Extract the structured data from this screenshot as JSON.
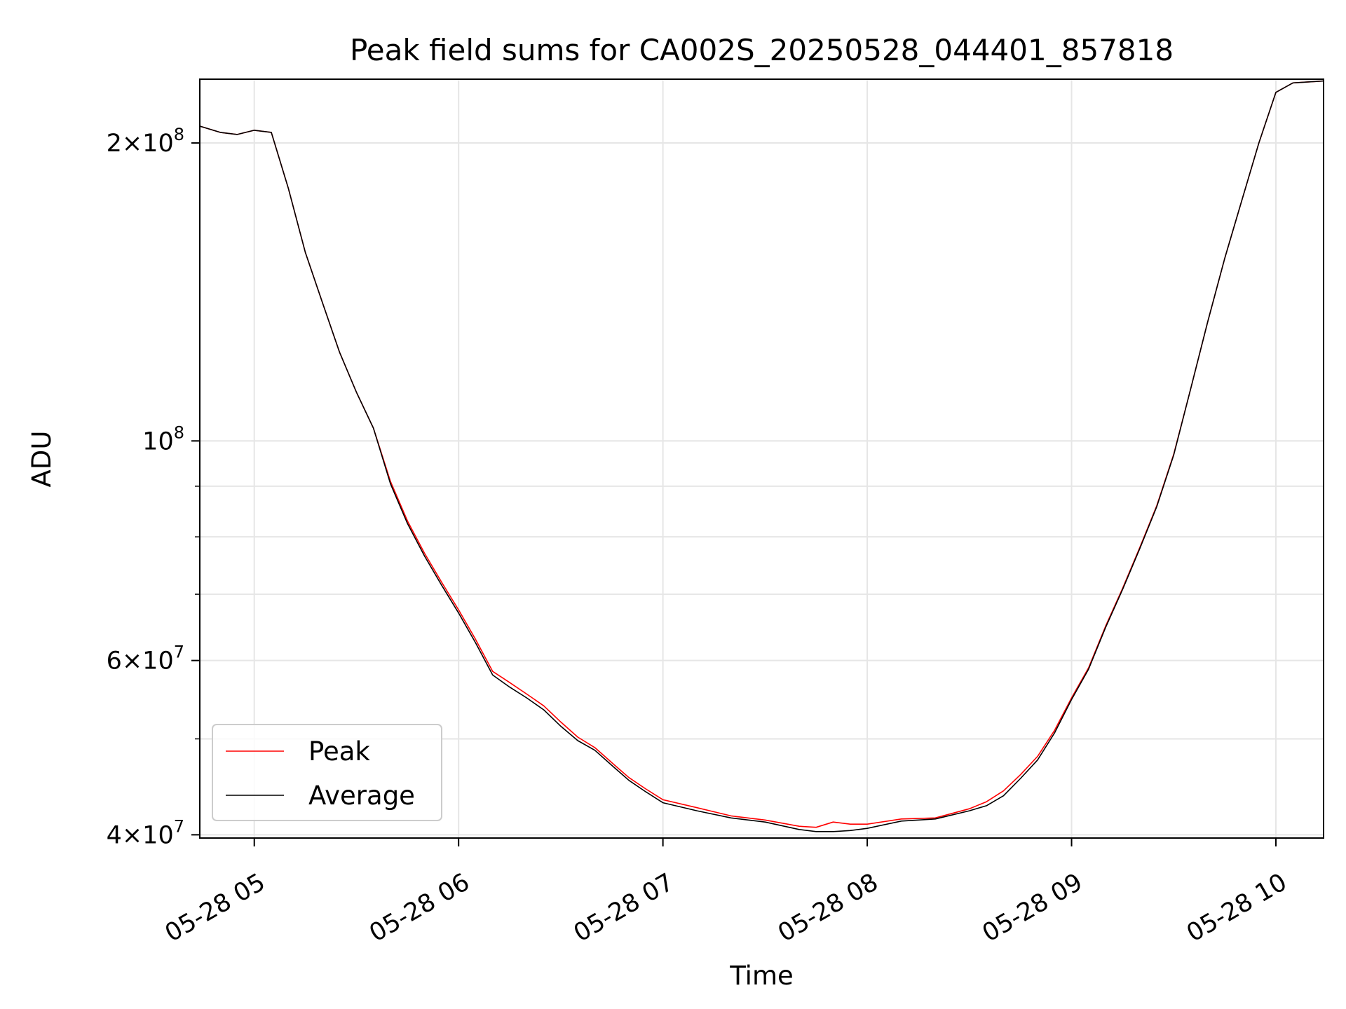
{
  "chart_data": {
    "type": "line",
    "title": "Peak field sums for CA002S_20250528_044401_857818",
    "xlabel": "Time",
    "ylabel": "ADU",
    "yscale": "log",
    "grid": true,
    "legend_position": "lower-left",
    "xlim": [
      "2025-05-28 04:44",
      "2025-05-28 10:14"
    ],
    "ylim": [
      39700000,
      232000000
    ],
    "x_ticks": [
      {
        "value": "2025-05-28 05:00",
        "label": "05-28 05"
      },
      {
        "value": "2025-05-28 06:00",
        "label": "05-28 06"
      },
      {
        "value": "2025-05-28 07:00",
        "label": "05-28 07"
      },
      {
        "value": "2025-05-28 08:00",
        "label": "05-28 08"
      },
      {
        "value": "2025-05-28 09:00",
        "label": "05-28 09"
      },
      {
        "value": "2025-05-28 10:00",
        "label": "05-28 10"
      }
    ],
    "y_major_ticks": [
      {
        "value": 40000000,
        "mantissa": "4",
        "exponent": "7"
      },
      {
        "value": 60000000,
        "mantissa": "6",
        "exponent": "7"
      },
      {
        "value": 100000000,
        "mantissa": "",
        "exponent": "8"
      },
      {
        "value": 200000000,
        "mantissa": "2",
        "exponent": "8"
      }
    ],
    "y_minor_ticks": [
      50000000,
      70000000,
      80000000,
      90000000
    ],
    "x": [
      "2025-05-28 04:44",
      "2025-05-28 04:50",
      "2025-05-28 04:55",
      "2025-05-28 05:00",
      "2025-05-28 05:05",
      "2025-05-28 05:10",
      "2025-05-28 05:15",
      "2025-05-28 05:20",
      "2025-05-28 05:25",
      "2025-05-28 05:30",
      "2025-05-28 05:35",
      "2025-05-28 05:40",
      "2025-05-28 05:45",
      "2025-05-28 05:50",
      "2025-05-28 05:55",
      "2025-05-28 06:00",
      "2025-05-28 06:05",
      "2025-05-28 06:10",
      "2025-05-28 06:15",
      "2025-05-28 06:20",
      "2025-05-28 06:25",
      "2025-05-28 06:30",
      "2025-05-28 06:35",
      "2025-05-28 06:40",
      "2025-05-28 06:45",
      "2025-05-28 06:50",
      "2025-05-28 06:55",
      "2025-05-28 07:00",
      "2025-05-28 07:10",
      "2025-05-28 07:20",
      "2025-05-28 07:30",
      "2025-05-28 07:40",
      "2025-05-28 07:45",
      "2025-05-28 07:50",
      "2025-05-28 07:55",
      "2025-05-28 08:00",
      "2025-05-28 08:10",
      "2025-05-28 08:20",
      "2025-05-28 08:30",
      "2025-05-28 08:35",
      "2025-05-28 08:40",
      "2025-05-28 08:45",
      "2025-05-28 08:50",
      "2025-05-28 08:55",
      "2025-05-28 09:00",
      "2025-05-28 09:05",
      "2025-05-28 09:10",
      "2025-05-28 09:15",
      "2025-05-28 09:20",
      "2025-05-28 09:25",
      "2025-05-28 09:30",
      "2025-05-28 09:35",
      "2025-05-28 09:40",
      "2025-05-28 09:45",
      "2025-05-28 09:50",
      "2025-05-28 09:55",
      "2025-05-28 10:00",
      "2025-05-28 10:05",
      "2025-05-28 10:14"
    ],
    "series": [
      {
        "name": "Peak",
        "color": "#ff0000",
        "values": [
          208000000,
          205000000,
          204000000,
          206000000,
          205000000,
          180000000,
          155000000,
          138000000,
          123000000,
          112000000,
          103000000,
          91000000,
          83000000,
          77000000,
          72000000,
          67500000,
          63000000,
          58500000,
          57000000,
          55500000,
          54000000,
          52000000,
          50200000,
          49000000,
          47300000,
          45700000,
          44500000,
          43400000,
          42600000,
          41800000,
          41400000,
          40800000,
          40700000,
          41200000,
          41000000,
          41000000,
          41500000,
          41600000,
          42500000,
          43200000,
          44300000,
          46000000,
          48000000,
          51000000,
          55000000,
          59000000,
          65000000,
          71000000,
          78000000,
          86000000,
          97000000,
          113000000,
          132000000,
          153000000,
          175000000,
          200000000,
          225000000,
          230000000,
          231000000
        ]
      },
      {
        "name": "Average",
        "color": "#000000",
        "values": [
          208000000,
          205000000,
          204000000,
          206000000,
          205000000,
          180000000,
          155000000,
          138000000,
          123000000,
          112000000,
          103000000,
          90500000,
          82500000,
          76500000,
          71500000,
          67000000,
          62500000,
          58000000,
          56400000,
          55000000,
          53500000,
          51500000,
          49800000,
          48700000,
          47000000,
          45400000,
          44200000,
          43100000,
          42300000,
          41600000,
          41200000,
          40500000,
          40300000,
          40300000,
          40400000,
          40600000,
          41300000,
          41500000,
          42300000,
          42800000,
          43800000,
          45600000,
          47600000,
          50700000,
          54800000,
          58800000,
          64800000,
          70800000,
          77800000,
          85800000,
          96800000,
          113000000,
          132000000,
          153000000,
          175000000,
          200000000,
          225000000,
          230000000,
          231000000
        ]
      }
    ]
  }
}
